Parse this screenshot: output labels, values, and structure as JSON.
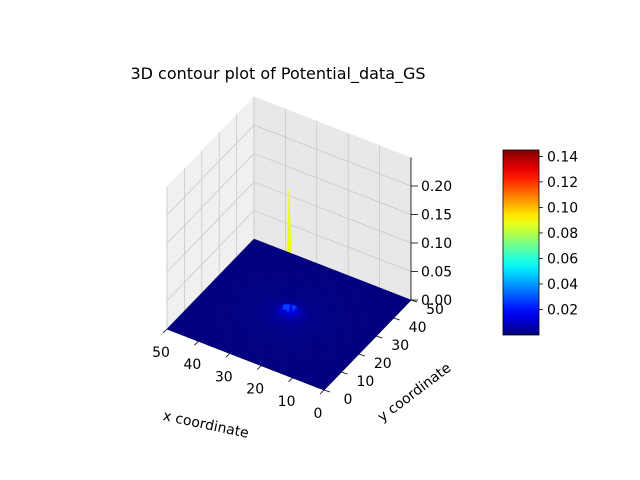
{
  "chart_data": {
    "type": "surface",
    "title": "3D contour plot of Potential_data_GS",
    "xlabel": "x coordinate",
    "ylabel": "y coordinate",
    "zlabel": "",
    "x_range": [
      0,
      50
    ],
    "y_range": [
      0,
      50
    ],
    "z_range": [
      0,
      0.25
    ],
    "x_ticks": [
      "0",
      "10",
      "20",
      "30",
      "40",
      "50"
    ],
    "y_ticks": [
      "0",
      "10",
      "20",
      "30",
      "40",
      "50"
    ],
    "z_ticks": [
      "0.00",
      "0.05",
      "0.10",
      "0.15",
      "0.20"
    ],
    "peak": {
      "x": 25,
      "y": 25,
      "z": 0.22
    },
    "baseline": 0.0,
    "colormap": "jet",
    "colorbar": {
      "min": 0.0,
      "max": 0.145,
      "ticks": [
        "0.02",
        "0.04",
        "0.06",
        "0.08",
        "0.10",
        "0.12",
        "0.14"
      ]
    },
    "grid": true
  }
}
